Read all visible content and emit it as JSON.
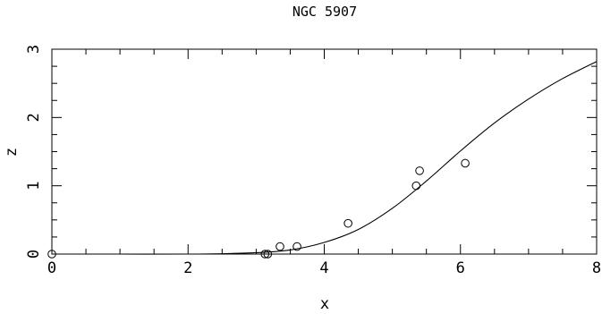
{
  "chart_data": {
    "type": "scatter",
    "title": "NGC 5907",
    "xlabel": "x",
    "ylabel": "z",
    "xlim": [
      0,
      8
    ],
    "ylim": [
      0,
      3
    ],
    "x_ticks": [
      {
        "value": 0,
        "label": "0"
      },
      {
        "value": 2,
        "label": "2"
      },
      {
        "value": 4,
        "label": "4"
      },
      {
        "value": 6,
        "label": "6"
      },
      {
        "value": 8,
        "label": "8"
      }
    ],
    "y_ticks": [
      {
        "value": 0,
        "label": "0"
      },
      {
        "value": 1,
        "label": "1"
      },
      {
        "value": 2,
        "label": "2"
      },
      {
        "value": 3,
        "label": "3"
      }
    ],
    "x_minor_step": 0.5,
    "y_minor_step": 0.25,
    "grid": false,
    "series": [
      {
        "kind": "points",
        "marker": "open-circle",
        "points": [
          {
            "x": 0.0,
            "y": 0.0
          },
          {
            "x": 3.13,
            "y": 0.0
          },
          {
            "x": 3.17,
            "y": 0.0
          },
          {
            "x": 3.35,
            "y": 0.11
          },
          {
            "x": 3.6,
            "y": 0.11
          },
          {
            "x": 4.35,
            "y": 0.45
          },
          {
            "x": 5.35,
            "y": 1.0
          },
          {
            "x": 5.4,
            "y": 1.22
          },
          {
            "x": 6.07,
            "y": 1.33
          }
        ]
      },
      {
        "kind": "curve",
        "points": [
          {
            "x": 0.0,
            "y": 0.0
          },
          {
            "x": 1.0,
            "y": 0.0
          },
          {
            "x": 2.0,
            "y": 0.0
          },
          {
            "x": 2.5,
            "y": 0.005
          },
          {
            "x": 3.0,
            "y": 0.02
          },
          {
            "x": 3.5,
            "y": 0.06
          },
          {
            "x": 4.0,
            "y": 0.17
          },
          {
            "x": 4.5,
            "y": 0.36
          },
          {
            "x": 5.0,
            "y": 0.67
          },
          {
            "x": 5.5,
            "y": 1.07
          },
          {
            "x": 6.0,
            "y": 1.51
          },
          {
            "x": 6.5,
            "y": 1.92
          },
          {
            "x": 7.0,
            "y": 2.27
          },
          {
            "x": 7.5,
            "y": 2.57
          },
          {
            "x": 8.0,
            "y": 2.82
          }
        ]
      }
    ]
  }
}
